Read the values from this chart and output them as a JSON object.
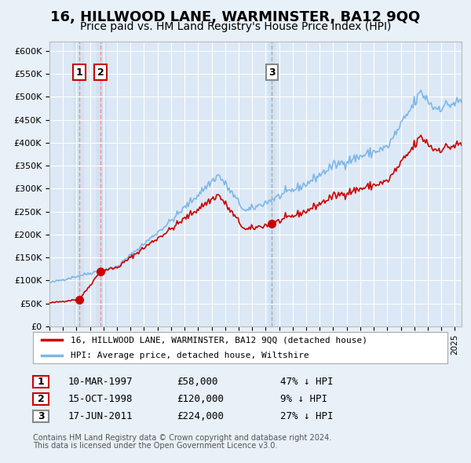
{
  "title": "16, HILLWOOD LANE, WARMINSTER, BA12 9QQ",
  "subtitle": "Price paid vs. HM Land Registry's House Price Index (HPI)",
  "title_fontsize": 13,
  "subtitle_fontsize": 10,
  "ylabel_ticks": [
    "£0",
    "£50K",
    "£100K",
    "£150K",
    "£200K",
    "£250K",
    "£300K",
    "£350K",
    "£400K",
    "£450K",
    "£500K",
    "£550K",
    "£600K"
  ],
  "ytick_values": [
    0,
    50000,
    100000,
    150000,
    200000,
    250000,
    300000,
    350000,
    400000,
    450000,
    500000,
    550000,
    600000
  ],
  "xlim_start": 1995.0,
  "xlim_end": 2025.5,
  "ylim_min": 0,
  "ylim_max": 620000,
  "hpi_color": "#7db7e8",
  "price_color": "#cc0000",
  "background_color": "#e8f0f8",
  "plot_bg_color": "#dce8f5",
  "grid_color": "#ffffff",
  "transaction_color": "#cc0000",
  "sale1_date": 1997.19,
  "sale1_price": 58000,
  "sale2_date": 1998.79,
  "sale2_price": 120000,
  "sale3_date": 2011.46,
  "sale3_price": 224000,
  "legend_line1": "16, HILLWOOD LANE, WARMINSTER, BA12 9QQ (detached house)",
  "legend_line2": "HPI: Average price, detached house, Wiltshire",
  "table_entries": [
    {
      "num": "1",
      "date": "10-MAR-1997",
      "price": "£58,000",
      "pct": "47% ↓ HPI"
    },
    {
      "num": "2",
      "date": "15-OCT-1998",
      "price": "£120,000",
      "pct": "9% ↓ HPI"
    },
    {
      "num": "3",
      "date": "17-JUN-2011",
      "price": "£224,000",
      "pct": "27% ↓ HPI"
    }
  ],
  "footnote1": "Contains HM Land Registry data © Crown copyright and database right 2024.",
  "footnote2": "This data is licensed under the Open Government Licence v3.0."
}
